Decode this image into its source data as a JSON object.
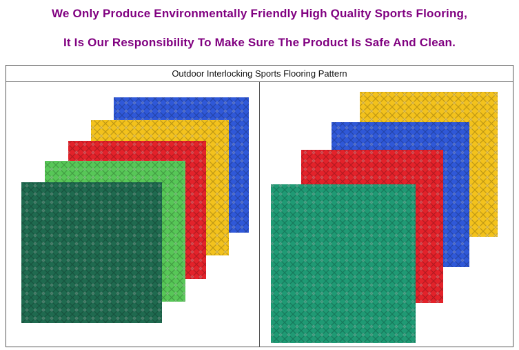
{
  "headline": {
    "line1": "We Only Produce Environmentally Friendly High Quality Sports Flooring,",
    "line2": "It Is Our Responsibility To Make Sure The Product Is Safe And Clean."
  },
  "table": {
    "caption": "Outdoor Interlocking Sports Flooring Pattern"
  },
  "colors": {
    "headline": "#800080",
    "tile_blue": "#2f58d8",
    "tile_yellow": "#f3c21c",
    "tile_red": "#e3222a",
    "tile_light_green": "#57c757",
    "tile_dark_green": "#1f6a4f",
    "tile_teal": "#1f9a74"
  },
  "images": {
    "left": {
      "icon": "stacked-tiles-image",
      "tiles": [
        "blue",
        "yellow",
        "red",
        "light-green",
        "dark-green"
      ]
    },
    "right": {
      "icon": "stacked-tiles-image",
      "tiles": [
        "yellow",
        "blue",
        "red",
        "teal"
      ]
    }
  }
}
